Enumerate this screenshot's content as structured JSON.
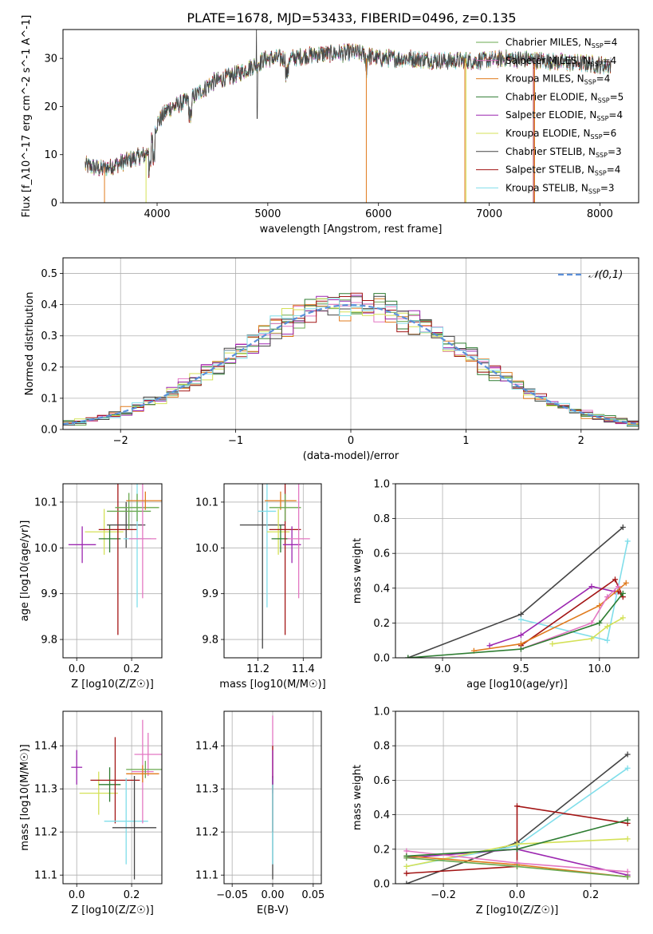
{
  "title": "PLATE=1678, MJD=53433, FIBERID=0496, z=0.135",
  "models": [
    {
      "label": "Chabrier MILES, N$_{SSP}$=4",
      "color": "#6aa84f"
    },
    {
      "label": "Salpeter MILES, N$_{SSP}$=4",
      "color": "#e377c2"
    },
    {
      "label": "Kroupa MILES, N$_{SSP}$=4",
      "color": "#e07b1e"
    },
    {
      "label": "Chabrier ELODIE, N$_{SSP}$=5",
      "color": "#2e7d32"
    },
    {
      "label": "Salpeter ELODIE, N$_{SSP}$=4",
      "color": "#9c27b0"
    },
    {
      "label": "Kroupa ELODIE, N$_{SSP}$=6",
      "color": "#d4e157"
    },
    {
      "label": "Chabrier STELIB, N$_{SSP}$=3",
      "color": "#444444"
    },
    {
      "label": "Salpeter STELIB, N$_{SSP}$=4",
      "color": "#a31515"
    },
    {
      "label": "Kroupa STELIB, N$_{SSP}$=3",
      "color": "#80deea"
    }
  ],
  "chart_data": [
    {
      "type": "line",
      "panel": "spectrum",
      "xlabel": "wavelength [Angstrom, rest frame]",
      "ylabel": "Flux [f_λ10^-17 erg cm^-2 s^-1 A^-1]",
      "xlim": [
        3150,
        8350
      ],
      "ylim": [
        0,
        36
      ],
      "xticks": [
        4000,
        5000,
        6000,
        7000,
        8000
      ],
      "yticks": [
        0,
        10,
        20,
        30
      ],
      "grid": false,
      "legend": "top-right",
      "continuum": {
        "x": [
          3350,
          3500,
          3700,
          3900,
          4000,
          4100,
          4300,
          4500,
          4700,
          5000,
          5200,
          5500,
          5800,
          6000,
          6300,
          6600,
          6900,
          7200,
          7500,
          7800,
          8100
        ],
        "y": [
          7.8,
          7.0,
          8.5,
          10.0,
          16.5,
          19.5,
          21.5,
          25.0,
          26.5,
          30.0,
          30.0,
          31.0,
          31.2,
          30.0,
          30.0,
          29.5,
          29.5,
          30.0,
          29.5,
          29.0,
          28.5
        ]
      }
    },
    {
      "type": "line",
      "panel": "residual histogram",
      "xlabel": "(data-model)/error",
      "ylabel": "Normed distribution",
      "xlim": [
        -2.5,
        2.5
      ],
      "ylim": [
        0,
        0.55
      ],
      "xticks": [
        -2,
        -1,
        0,
        1,
        2
      ],
      "yticks": [
        0.0,
        0.1,
        0.2,
        0.3,
        0.4,
        0.5
      ],
      "grid": true,
      "legend": "top-right",
      "reference_label": "$\\mathcal{N}(0,1)$",
      "reference_color": "#5b8fd9",
      "bin_width": 0.1
    },
    {
      "type": "scatter",
      "panel": "age vs Z",
      "xlabel": "Z [log10(Z/Z☉)]",
      "ylabel": "age  [log10(age/yr)]",
      "xlim": [
        -0.05,
        0.31
      ],
      "ylim": [
        9.76,
        10.14
      ],
      "xticks": [
        0.0,
        0.2
      ],
      "yticks": [
        9.8,
        9.9,
        10.0,
        10.1
      ],
      "grid": true,
      "points": [
        {
          "x": 0.02,
          "y": 10.007,
          "xerr": 0.05,
          "yerr": 0.04,
          "m": 4
        },
        {
          "x": 0.1,
          "y": 10.035,
          "xerr": 0.07,
          "yerr": 0.05,
          "m": 5
        },
        {
          "x": 0.12,
          "y": 10.02,
          "xerr": 0.04,
          "yerr": 0.03,
          "m": 3
        },
        {
          "x": 0.15,
          "y": 10.04,
          "xerr": 0.07,
          "yerr": 0.23,
          "m": 7
        },
        {
          "x": 0.18,
          "y": 10.05,
          "xerr": 0.07,
          "yerr": 0.05,
          "m": 6
        },
        {
          "x": 0.19,
          "y": 10.08,
          "xerr": 0.08,
          "yerr": 0.04,
          "m": 0
        },
        {
          "x": 0.22,
          "y": 10.02,
          "xerr": 0.05,
          "yerr": 0.15,
          "m": 8
        },
        {
          "x": 0.22,
          "y": 10.088,
          "xerr": 0.08,
          "yerr": 0.03,
          "m": 0
        },
        {
          "x": 0.24,
          "y": 10.02,
          "xerr": 0.05,
          "yerr": 0.13,
          "m": 1
        },
        {
          "x": 0.25,
          "y": 10.103,
          "xerr": 0.07,
          "yerr": 0.02,
          "m": 2
        }
      ]
    },
    {
      "type": "scatter",
      "panel": "age vs mass",
      "xlabel": "mass [log10(M/M☉)]",
      "ylabel": "",
      "xlim": [
        11.05,
        11.48
      ],
      "ylim": [
        9.76,
        10.14
      ],
      "xticks": [
        11.2,
        11.4
      ],
      "yticks": [
        9.8,
        9.9,
        10.0,
        10.1
      ],
      "grid": true,
      "points": [
        {
          "x": 11.22,
          "y": 10.05,
          "xerr": 0.1,
          "yerr": 0.27,
          "m": 6
        },
        {
          "x": 11.24,
          "y": 10.08,
          "xerr": 0.04,
          "yerr": 0.21,
          "m": 8
        },
        {
          "x": 11.29,
          "y": 10.035,
          "xerr": 0.05,
          "yerr": 0.05,
          "m": 5
        },
        {
          "x": 11.3,
          "y": 10.02,
          "xerr": 0.04,
          "yerr": 0.03,
          "m": 3
        },
        {
          "x": 11.32,
          "y": 10.04,
          "xerr": 0.07,
          "yerr": 0.23,
          "m": 7
        },
        {
          "x": 11.3,
          "y": 10.103,
          "xerr": 0.07,
          "yerr": 0.02,
          "m": 2
        },
        {
          "x": 11.32,
          "y": 10.088,
          "xerr": 0.07,
          "yerr": 0.03,
          "m": 0
        },
        {
          "x": 11.35,
          "y": 10.007,
          "xerr": 0.04,
          "yerr": 0.04,
          "m": 4
        },
        {
          "x": 11.38,
          "y": 10.02,
          "xerr": 0.05,
          "yerr": 0.13,
          "m": 1
        }
      ]
    },
    {
      "type": "line",
      "panel": "mass weight vs age",
      "xlabel": "age  [log10(age/yr)]",
      "ylabel": "mass weight",
      "xlim": [
        8.7,
        10.25
      ],
      "ylim": [
        0,
        1
      ],
      "xticks": [
        9.0,
        9.5,
        10.0
      ],
      "yticks": [
        0.0,
        0.2,
        0.4,
        0.6,
        0.8,
        1.0
      ],
      "grid": true,
      "series": [
        {
          "m": 6,
          "x": [
            8.78,
            9.5,
            10.15
          ],
          "y": [
            0.0,
            0.25,
            0.75
          ]
        },
        {
          "m": 8,
          "x": [
            9.5,
            10.05,
            10.18
          ],
          "y": [
            0.22,
            0.1,
            0.67
          ]
        },
        {
          "m": 4,
          "x": [
            9.3,
            9.5,
            9.95,
            10.1
          ],
          "y": [
            0.07,
            0.13,
            0.41,
            0.38
          ]
        },
        {
          "m": 7,
          "x": [
            9.5,
            10.1,
            10.15,
            10.12
          ],
          "y": [
            0.07,
            0.45,
            0.35,
            0.38
          ]
        },
        {
          "m": 2,
          "x": [
            9.2,
            9.5,
            10.0,
            10.17
          ],
          "y": [
            0.04,
            0.08,
            0.3,
            0.43
          ]
        },
        {
          "m": 5,
          "x": [
            9.7,
            9.95,
            10.05,
            10.15
          ],
          "y": [
            0.08,
            0.11,
            0.18,
            0.23
          ]
        },
        {
          "m": 1,
          "x": [
            9.5,
            9.95,
            10.05,
            10.12
          ],
          "y": [
            0.05,
            0.2,
            0.35,
            0.41
          ]
        },
        {
          "m": 3,
          "x": [
            8.78,
            9.5,
            10.0,
            10.15
          ],
          "y": [
            0.0,
            0.05,
            0.2,
            0.37
          ]
        }
      ]
    },
    {
      "type": "scatter",
      "panel": "mass vs Z",
      "xlabel": "Z [log10(Z/Z☉)]",
      "ylabel": "mass [log10(M/M☉)]",
      "xlim": [
        -0.05,
        0.31
      ],
      "ylim": [
        11.08,
        11.48
      ],
      "xticks": [
        0.0,
        0.2
      ],
      "yticks": [
        11.1,
        11.2,
        11.3,
        11.4
      ],
      "grid": true,
      "points": [
        {
          "x": 0.0,
          "y": 11.35,
          "xerr": 0.02,
          "yerr": 0.04,
          "m": 4
        },
        {
          "x": 0.08,
          "y": 11.29,
          "xerr": 0.07,
          "yerr": 0.05,
          "m": 5
        },
        {
          "x": 0.12,
          "y": 11.31,
          "xerr": 0.04,
          "yerr": 0.04,
          "m": 3
        },
        {
          "x": 0.14,
          "y": 11.32,
          "xerr": 0.09,
          "yerr": 0.1,
          "m": 7
        },
        {
          "x": 0.18,
          "y": 11.225,
          "xerr": 0.08,
          "yerr": 0.1,
          "m": 8
        },
        {
          "x": 0.21,
          "y": 11.21,
          "xerr": 0.08,
          "yerr": 0.12,
          "m": 6
        },
        {
          "x": 0.24,
          "y": 11.34,
          "xerr": 0.04,
          "yerr": 0.12,
          "m": 1
        },
        {
          "x": 0.26,
          "y": 11.38,
          "xerr": 0.05,
          "yerr": 0.05,
          "m": 1
        },
        {
          "x": 0.25,
          "y": 11.345,
          "xerr": 0.07,
          "yerr": 0.02,
          "m": 0
        },
        {
          "x": 0.24,
          "y": 11.335,
          "xerr": 0.06,
          "yerr": 0.02,
          "m": 2
        }
      ]
    },
    {
      "type": "scatter",
      "panel": "mass vs E(B-V)",
      "xlabel": "E(B-V)",
      "ylabel": "",
      "xlim": [
        -0.06,
        0.06
      ],
      "ylim": [
        11.08,
        11.48
      ],
      "xticks": [
        -0.05,
        0.0,
        0.05
      ],
      "yticks": [
        11.1,
        11.2,
        11.3,
        11.4
      ],
      "grid": true,
      "points": [
        {
          "x": 0.0,
          "y": 11.38,
          "xerr": 0,
          "yerr": 0.09,
          "m": 1
        },
        {
          "x": 0.0,
          "y": 11.3,
          "xerr": 0,
          "yerr": 0.1,
          "m": 7
        },
        {
          "x": 0.0,
          "y": 11.21,
          "xerr": 0,
          "yerr": 0.12,
          "m": 6
        },
        {
          "x": 0.0,
          "y": 11.225,
          "xerr": 0,
          "yerr": 0.1,
          "m": 8
        },
        {
          "x": 0.0,
          "y": 11.35,
          "xerr": 0,
          "yerr": 0.04,
          "m": 4
        }
      ]
    },
    {
      "type": "line",
      "panel": "mass weight vs Z",
      "xlabel": "Z [log10(Z/Z☉)]",
      "ylabel": "mass weight",
      "xlim": [
        -0.33,
        0.33
      ],
      "ylim": [
        0,
        1
      ],
      "xticks": [
        -0.2,
        0.0,
        0.2
      ],
      "yticks": [
        0.0,
        0.2,
        0.4,
        0.6,
        0.8,
        1.0
      ],
      "grid": true,
      "series": [
        {
          "m": 6,
          "x": [
            -0.3,
            0.0,
            0.3
          ],
          "y": [
            0.0,
            0.24,
            0.75
          ]
        },
        {
          "m": 8,
          "x": [
            -0.3,
            0.0,
            0.3
          ],
          "y": [
            0.1,
            0.22,
            0.67
          ]
        },
        {
          "m": 7,
          "x": [
            -0.3,
            0.0,
            0.0,
            0.3
          ],
          "y": [
            0.06,
            0.1,
            0.45,
            0.35
          ]
        },
        {
          "m": 4,
          "x": [
            -0.3,
            0.0,
            0.3
          ],
          "y": [
            0.15,
            0.2,
            0.05
          ]
        },
        {
          "m": 5,
          "x": [
            -0.3,
            0.0,
            0.3
          ],
          "y": [
            0.1,
            0.23,
            0.26
          ]
        },
        {
          "m": 2,
          "x": [
            -0.3,
            0.0,
            0.3
          ],
          "y": [
            0.16,
            0.11,
            0.04
          ]
        },
        {
          "m": 1,
          "x": [
            -0.3,
            0.0,
            0.3
          ],
          "y": [
            0.19,
            0.12,
            0.07
          ]
        },
        {
          "m": 3,
          "x": [
            -0.3,
            0.0,
            0.3
          ],
          "y": [
            0.16,
            0.2,
            0.37
          ]
        },
        {
          "m": 0,
          "x": [
            -0.3,
            0.0,
            0.3
          ],
          "y": [
            0.15,
            0.1,
            0.04
          ]
        }
      ]
    }
  ]
}
